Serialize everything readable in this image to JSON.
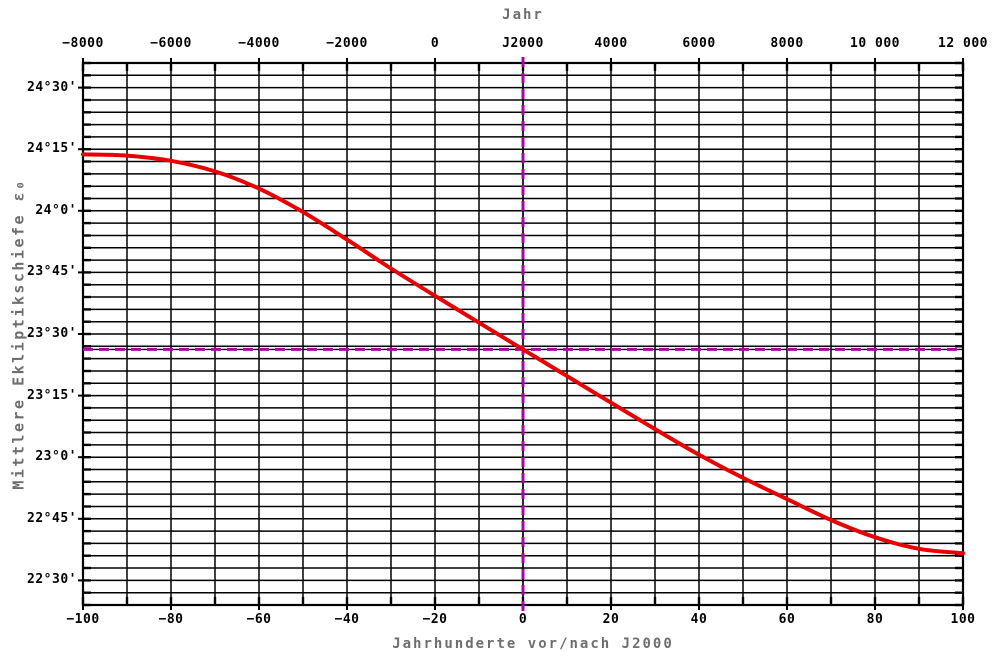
{
  "chart_data": {
    "type": "line",
    "top_axis_label": "Jahr",
    "xlabel": "Jahrhunderte vor/nach J2000",
    "ylabel": "Mittlere Ekliptikschiefe ε₀",
    "xlim": [
      -100,
      100
    ],
    "ylim_deg": [
      22.4,
      24.6
    ],
    "x_major_step": 20,
    "x_minor_step": 10,
    "y_major_step_deg": 0.25,
    "y_minor_step_deg": 0.05,
    "grid": "both-major-and-minor",
    "x_ticks_bottom": [
      {
        "value": -100,
        "label": "−100"
      },
      {
        "value": -80,
        "label": "−80"
      },
      {
        "value": -60,
        "label": "−60"
      },
      {
        "value": -40,
        "label": "−40"
      },
      {
        "value": -20,
        "label": "−20"
      },
      {
        "value": 0,
        "label": "0"
      },
      {
        "value": 20,
        "label": "20"
      },
      {
        "value": 40,
        "label": "40"
      },
      {
        "value": 60,
        "label": "60"
      },
      {
        "value": 80,
        "label": "80"
      },
      {
        "value": 100,
        "label": "100"
      }
    ],
    "x_ticks_top": [
      {
        "value": -100,
        "label": "−8000"
      },
      {
        "value": -80,
        "label": "−6000"
      },
      {
        "value": -60,
        "label": "−4000"
      },
      {
        "value": -40,
        "label": "−2000"
      },
      {
        "value": -20,
        "label": "0"
      },
      {
        "value": 0,
        "label": "J2000"
      },
      {
        "value": 20,
        "label": "4000"
      },
      {
        "value": 40,
        "label": "6000"
      },
      {
        "value": 60,
        "label": "8000"
      },
      {
        "value": 80,
        "label": "10 000"
      },
      {
        "value": 100,
        "label": "12 000"
      }
    ],
    "y_ticks": [
      {
        "value": 24.5,
        "label": "24°30'"
      },
      {
        "value": 24.25,
        "label": "24°15'"
      },
      {
        "value": 24.0,
        "label": "24°0'"
      },
      {
        "value": 23.75,
        "label": "23°45'"
      },
      {
        "value": 23.5,
        "label": "23°30'"
      },
      {
        "value": 23.25,
        "label": "23°15'"
      },
      {
        "value": 23.0,
        "label": "23°0'"
      },
      {
        "value": 22.75,
        "label": "22°45'"
      },
      {
        "value": 22.5,
        "label": "22°30'"
      }
    ],
    "series": [
      {
        "name": "mean-obliquity-of-ecliptic",
        "color": "#e60000",
        "x": [
          -100,
          -90,
          -80,
          -70,
          -60,
          -50,
          -40,
          -30,
          -20,
          -10,
          0,
          10,
          20,
          30,
          40,
          50,
          60,
          70,
          80,
          90,
          100
        ],
        "y_deg": [
          24.229,
          24.224,
          24.203,
          24.16,
          24.09,
          23.995,
          23.883,
          23.766,
          23.655,
          23.546,
          23.4375,
          23.329,
          23.221,
          23.114,
          23.01,
          22.916,
          22.83,
          22.745,
          22.675,
          22.628,
          22.61
        ]
      }
    ],
    "reference_lines": [
      {
        "orientation": "horizontal",
        "value_deg": 23.4375,
        "color": "#aa00aa",
        "style": "dashed"
      },
      {
        "orientation": "vertical",
        "value": 0,
        "color": "#aa00aa",
        "style": "dashed"
      }
    ]
  },
  "colors": {
    "background": "#ffffff",
    "grid": "#000000",
    "border": "#000000",
    "tick_labels": "#000000",
    "axis_titles": "#6e6e6e",
    "curve": "#e60000",
    "reference": "#aa00aa"
  }
}
